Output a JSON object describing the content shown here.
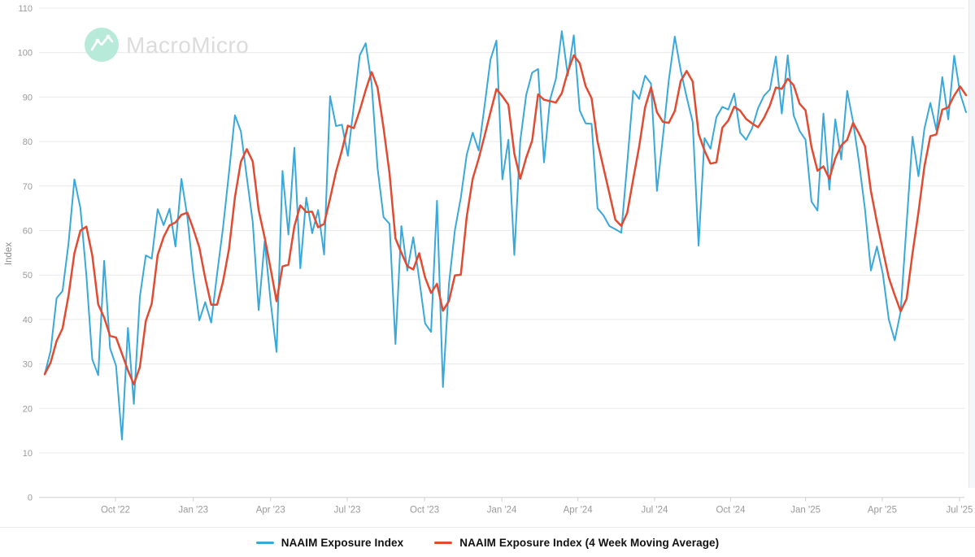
{
  "watermark": {
    "brand": "MacroMicro"
  },
  "colors": {
    "index_line": "#39a8da",
    "ma_line": "#e14b32",
    "grid": "#e9e9e9",
    "axis": "#cfcfcf",
    "tick_label": "#9a9a9a",
    "watermark_circle": "#b7ead8",
    "watermark_text": "#dcdcdc"
  },
  "chart_data": {
    "type": "line",
    "title": "",
    "xlabel": "",
    "ylabel": "Index",
    "ylim": [
      0,
      110
    ],
    "grid": "horizontal",
    "legend_position": "bottom",
    "frequency": "weekly",
    "x_span": "Jul 2022 - Jul 2025",
    "ma_window": 4,
    "y_ticks": [
      0,
      10,
      20,
      30,
      40,
      50,
      60,
      70,
      80,
      90,
      100,
      110
    ],
    "x_ticks": [
      {
        "label": "Oct '22",
        "t": 11.9
      },
      {
        "label": "Jan '23",
        "t": 25.0
      },
      {
        "label": "Apr '23",
        "t": 38.0
      },
      {
        "label": "Jul '23",
        "t": 50.9
      },
      {
        "label": "Oct '23",
        "t": 63.9
      },
      {
        "label": "Jan '24",
        "t": 76.9
      },
      {
        "label": "Apr '24",
        "t": 89.7
      },
      {
        "label": "Jul '24",
        "t": 102.6
      },
      {
        "label": "Oct '24",
        "t": 115.4
      },
      {
        "label": "Jan '25",
        "t": 128.0
      },
      {
        "label": "Apr '25",
        "t": 140.9
      },
      {
        "label": "Jul '25",
        "t": 153.9
      }
    ],
    "series": [
      {
        "name": "NAAIM Exposure Index",
        "color": "#39a8da",
        "values": [
          27.7,
          33.0,
          44.8,
          46.4,
          57.0,
          71.5,
          65.0,
          50.0,
          31.0,
          27.5,
          53.2,
          33.5,
          29.6,
          13.0,
          38.1,
          21.0,
          45.1,
          54.4,
          53.7,
          64.8,
          61.2,
          64.9,
          56.4,
          71.6,
          63.1,
          50.3,
          39.8,
          43.9,
          39.3,
          50.3,
          60.7,
          73.0,
          85.9,
          82.3,
          72.0,
          61.9,
          42.1,
          57.6,
          44.0,
          32.7,
          73.4,
          59.1,
          78.6,
          51.5,
          67.4,
          59.4,
          64.6,
          54.6,
          90.2,
          83.5,
          83.8,
          76.8,
          88.0,
          99.4,
          102.1,
          93.0,
          74.0,
          63.0,
          61.5,
          34.5,
          61.0,
          51.0,
          58.5,
          49.1,
          39.1,
          37.2,
          66.7,
          24.8,
          48.0,
          60.1,
          67.4,
          77.1,
          82.0,
          78.0,
          88.0,
          98.5,
          102.7,
          71.5,
          80.4,
          54.5,
          80.2,
          90.5,
          95.5,
          96.3,
          75.3,
          89.3,
          94.1,
          104.8,
          94.8,
          103.9,
          87.0,
          84.1,
          84.0,
          65.0,
          63.4,
          61.0,
          60.3,
          59.5,
          75.0,
          91.4,
          89.6,
          94.8,
          93.0,
          68.9,
          81.0,
          93.9,
          103.6,
          96.0,
          90.0,
          84.4,
          56.6,
          80.8,
          78.4,
          85.5,
          87.8,
          87.2,
          90.8,
          82.0,
          80.4,
          83.0,
          87.5,
          90.3,
          91.7,
          99.1,
          86.3,
          99.4,
          85.9,
          82.4,
          80.4,
          66.5,
          64.5,
          86.3,
          69.2,
          85.0,
          76.0,
          91.4,
          84.4,
          75.3,
          64.8,
          51.0,
          56.4,
          50.2,
          40.0,
          35.3,
          41.8,
          61.5,
          81.1,
          72.2,
          82.9,
          88.7,
          82.6,
          94.5,
          85.0,
          99.3,
          90.8,
          86.6
        ]
      },
      {
        "name": "NAAIM Exposure Index (4 Week Moving Average)",
        "color": "#e14b32",
        "derived": "4-week moving average of the NAAIM Exposure Index series"
      }
    ]
  }
}
